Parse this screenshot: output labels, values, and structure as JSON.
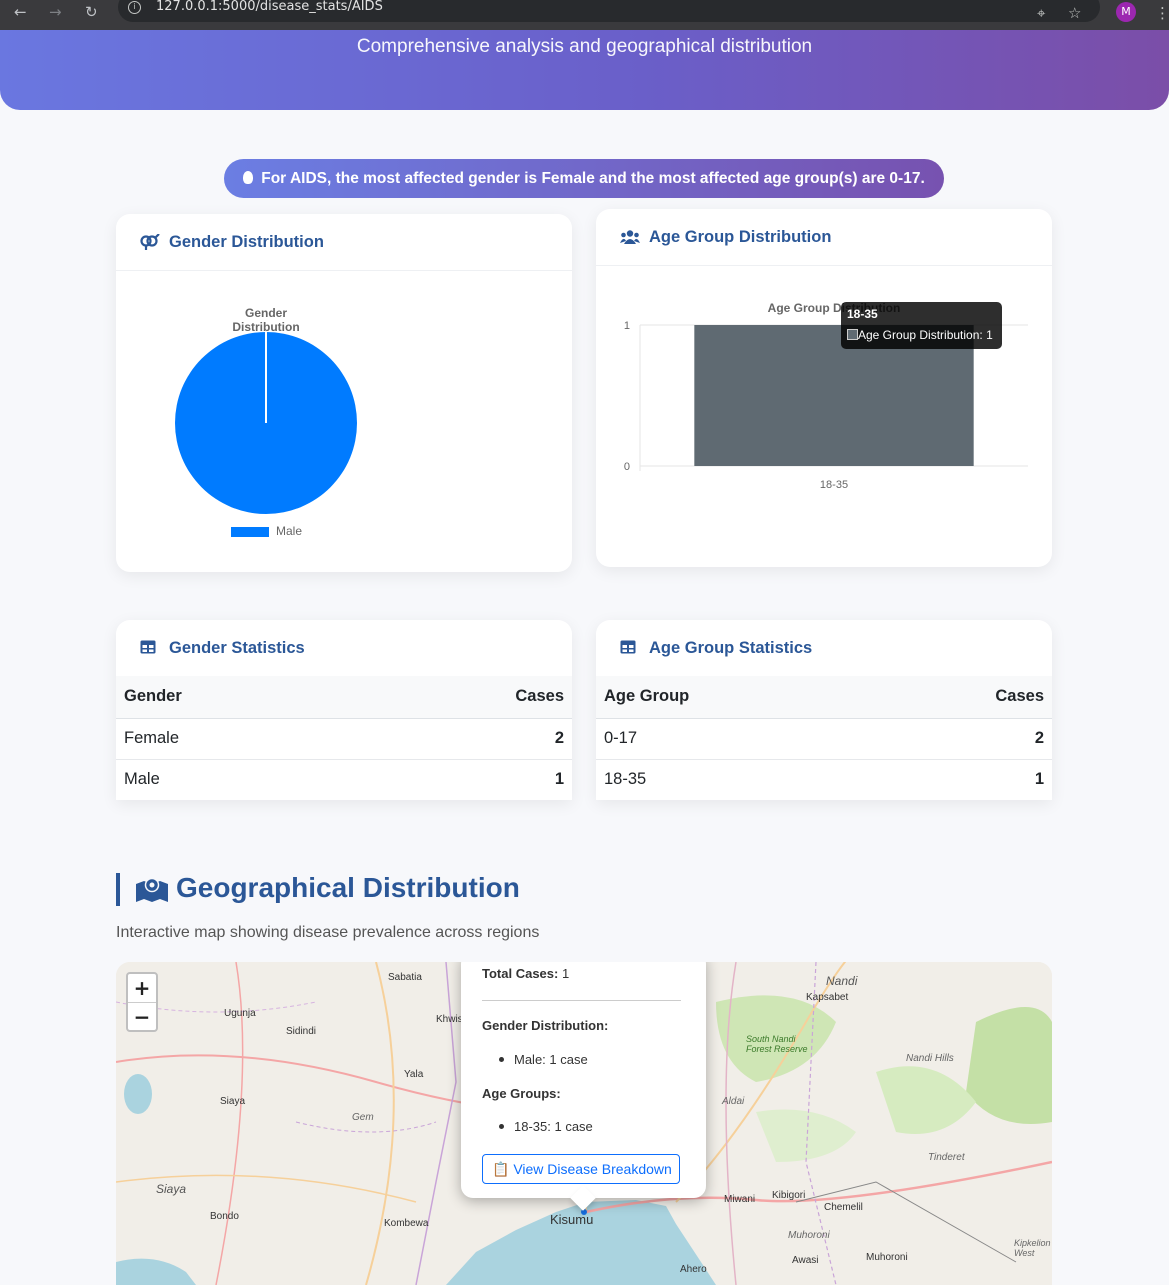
{
  "browser": {
    "url": "127.0.0.1:5000/disease_stats/AIDS",
    "avatar_letter": "M"
  },
  "header": {
    "subtitle": "Comprehensive analysis and geographical distribution"
  },
  "insight": {
    "text": "For AIDS, the most affected gender is Female and the most affected age group(s) are 0-17."
  },
  "gender_card": {
    "title": "Gender Distribution",
    "chart_data": {
      "type": "pie",
      "title": "Gender Distribution",
      "labels": [
        "Male"
      ],
      "values": [
        1
      ],
      "colors": [
        "#007bff"
      ],
      "legend": "bottom"
    }
  },
  "age_card": {
    "title": "Age Group Distribution",
    "chart_data": {
      "type": "bar",
      "title": "Age Group Distribution",
      "categories": [
        "18-35"
      ],
      "series": [
        {
          "name": "Age Group Distribution",
          "values": [
            1
          ]
        }
      ],
      "yticks": [
        "0",
        "1"
      ],
      "ylim": [
        0,
        1
      ],
      "bar_color": "#5f6a72"
    },
    "tooltip": {
      "title": "18-35",
      "body": "Age Group Distribution: 1"
    }
  },
  "gender_stats": {
    "title": "Gender Statistics",
    "headers": [
      "Gender",
      "Cases"
    ],
    "rows": [
      {
        "label": "Female",
        "value": "2"
      },
      {
        "label": "Male",
        "value": "1"
      }
    ]
  },
  "age_stats": {
    "title": "Age Group Statistics",
    "headers": [
      "Age Group",
      "Cases"
    ],
    "rows": [
      {
        "label": "0-17",
        "value": "2"
      },
      {
        "label": "18-35",
        "value": "1"
      }
    ]
  },
  "geo": {
    "title": "Geographical Distribution",
    "subtitle": "Interactive map showing disease prevalence across regions",
    "zoom_in": "+",
    "zoom_out": "−",
    "popup": {
      "total_label": "Total Cases:",
      "total_value": "1",
      "gender_label": "Gender Distribution:",
      "gender_items": [
        "Male: 1 case"
      ],
      "age_label": "Age Groups:",
      "age_items": [
        "18-35: 1 case"
      ],
      "button": "📋 View Disease Breakdown"
    },
    "places": [
      "Sabatia",
      "Ugunja",
      "Sidindi",
      "Khwisero",
      "Yala",
      "Siaya",
      "Gem",
      "Siaya",
      "Bondo",
      "Kombewa",
      "Kisumu",
      "Nandi",
      "Kapsabet",
      "South Nandi Forest Reserve",
      "Nandi Hills",
      "Aldai",
      "Tinderet",
      "Miwani",
      "Kibigori",
      "Chemelil",
      "Muhoroni",
      "Muhoroni",
      "Awasi",
      "Ahero",
      "Kipkelion West"
    ]
  }
}
